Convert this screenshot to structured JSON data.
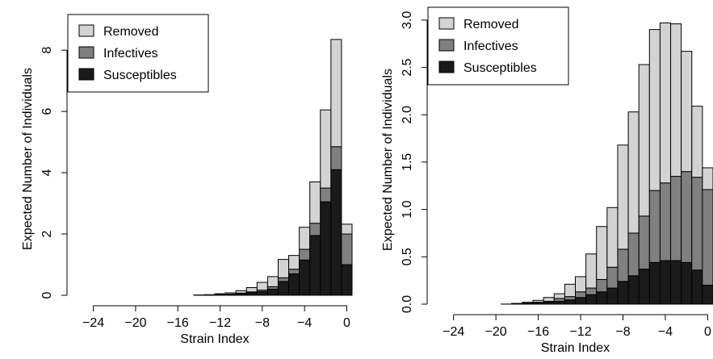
{
  "colors": {
    "removed": "#d3d3d3",
    "infectives": "#808080",
    "susceptibles": "#1a1a1a",
    "edge": "#000000"
  },
  "chart_data": [
    {
      "type": "bar",
      "stacked": true,
      "xlabel": "Strain Index",
      "ylabel": "Expected Number of Individuals",
      "xlim": [
        -25.5,
        0.5
      ],
      "ylim": [
        0,
        8.9
      ],
      "xticks": [
        "-24",
        "-20",
        "-16",
        "-12",
        "-8",
        "-4",
        "0"
      ],
      "xtick_values": [
        -24,
        -20,
        -16,
        -12,
        -8,
        -4,
        0
      ],
      "yticks": [
        "0",
        "2",
        "4",
        "6",
        "8"
      ],
      "ytick_values": [
        0,
        2,
        4,
        6,
        8
      ],
      "legend_position": "top-left",
      "legend": [
        "Removed",
        "Infectives",
        "Susceptibles"
      ],
      "x": [
        -24,
        -23,
        -22,
        -21,
        -20,
        -19,
        -18,
        -17,
        -16,
        -15,
        -14,
        -13,
        -12,
        -11,
        -10,
        -9,
        -8,
        -7,
        -6,
        -5,
        -4,
        -3,
        -2,
        -1,
        0
      ],
      "series": [
        {
          "name": "Susceptibles",
          "values": [
            0,
            0,
            0,
            0,
            0,
            0,
            0,
            0,
            0,
            0,
            0,
            0.01,
            0.02,
            0.03,
            0.05,
            0.08,
            0.12,
            0.2,
            0.45,
            0.7,
            1.15,
            1.95,
            3.05,
            4.1,
            1.0
          ]
        },
        {
          "name": "Infectives",
          "values": [
            0,
            0,
            0,
            0,
            0,
            0,
            0,
            0,
            0,
            0,
            0,
            0,
            0.01,
            0.01,
            0.02,
            0.03,
            0.05,
            0.08,
            0.12,
            0.15,
            0.35,
            0.4,
            0.45,
            0.75,
            1.0
          ]
        },
        {
          "name": "Removed",
          "values": [
            0,
            0,
            0,
            0,
            0,
            0,
            0,
            0,
            0,
            0,
            0.01,
            0.01,
            0.02,
            0.04,
            0.08,
            0.14,
            0.25,
            0.33,
            0.6,
            0.45,
            0.72,
            1.35,
            2.55,
            3.5,
            0.32
          ]
        }
      ]
    },
    {
      "type": "bar",
      "stacked": true,
      "xlabel": "Strain Index",
      "ylabel": "Expected Number of Individuals",
      "xlim": [
        -25.5,
        0.5
      ],
      "ylim": [
        0,
        3.05
      ],
      "xticks": [
        "-24",
        "-20",
        "-16",
        "-12",
        "-8",
        "-4",
        "0"
      ],
      "xtick_values": [
        -24,
        -20,
        -16,
        -12,
        -8,
        -4,
        0
      ],
      "yticks": [
        "0.0",
        "0.5",
        "1.0",
        "1.5",
        "2.0",
        "2.5",
        "3.0"
      ],
      "ytick_values": [
        0,
        0.5,
        1.0,
        1.5,
        2.0,
        2.5,
        3.0
      ],
      "legend_position": "top-left",
      "legend": [
        "Removed",
        "Infectives",
        "Susceptibles"
      ],
      "x": [
        -24,
        -23,
        -22,
        -21,
        -20,
        -19,
        -18,
        -17,
        -16,
        -15,
        -14,
        -13,
        -12,
        -11,
        -10,
        -9,
        -8,
        -7,
        -6,
        -5,
        -4,
        -3,
        -2,
        -1,
        0
      ],
      "series": [
        {
          "name": "Susceptibles",
          "values": [
            0,
            0,
            0,
            0,
            0,
            0,
            0.003,
            0.006,
            0.012,
            0.02,
            0.03,
            0.045,
            0.07,
            0.1,
            0.13,
            0.17,
            0.24,
            0.3,
            0.37,
            0.44,
            0.46,
            0.46,
            0.44,
            0.36,
            0.2
          ]
        },
        {
          "name": "Infectives",
          "values": [
            0,
            0,
            0,
            0,
            0,
            0.001,
            0.002,
            0.004,
            0.008,
            0.01,
            0.03,
            0.035,
            0.06,
            0.07,
            0.13,
            0.22,
            0.34,
            0.45,
            0.56,
            0.76,
            0.82,
            0.89,
            0.96,
            0.98,
            1.01
          ]
        },
        {
          "name": "Removed",
          "values": [
            0,
            0,
            0,
            0,
            0,
            0,
            0.003,
            0.01,
            0.02,
            0.04,
            0.05,
            0.13,
            0.16,
            0.36,
            0.56,
            0.63,
            1.1,
            1.28,
            1.6,
            1.7,
            1.69,
            1.61,
            1.27,
            0.75,
            0.23
          ]
        }
      ]
    }
  ]
}
